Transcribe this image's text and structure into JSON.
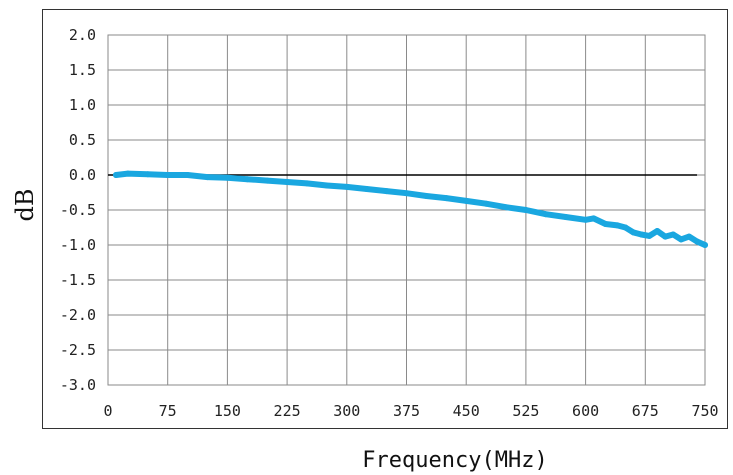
{
  "chart_data": {
    "type": "line",
    "title": "",
    "xlabel": "Frequency(MHz)",
    "ylabel": "dB",
    "xlim": [
      0,
      750
    ],
    "ylim": [
      -3.0,
      2.0
    ],
    "x_ticks": [
      "0",
      "75",
      "150",
      "225",
      "300",
      "375",
      "450",
      "525",
      "600",
      "675",
      "750"
    ],
    "y_ticks": [
      "2.0",
      "1.5",
      "1.0",
      "0.5",
      "0.0",
      "-0.5",
      "-1.0",
      "-1.5",
      "-2.0",
      "-2.5",
      "-3.0"
    ],
    "grid": true,
    "reference_line": {
      "y": 0.0,
      "x_range": [
        0,
        740
      ],
      "color": "#000000"
    },
    "series": [
      {
        "color": "#1aa7e0",
        "x": [
          10,
          25,
          50,
          75,
          100,
          125,
          150,
          175,
          200,
          225,
          250,
          275,
          300,
          325,
          350,
          375,
          400,
          425,
          450,
          475,
          500,
          525,
          550,
          575,
          600,
          610,
          625,
          640,
          650,
          660,
          670,
          680,
          690,
          700,
          710,
          720,
          730,
          740,
          750
        ],
        "y": [
          0.0,
          0.02,
          0.01,
          0.0,
          0.0,
          -0.03,
          -0.04,
          -0.06,
          -0.08,
          -0.1,
          -0.12,
          -0.15,
          -0.17,
          -0.2,
          -0.23,
          -0.26,
          -0.3,
          -0.33,
          -0.37,
          -0.41,
          -0.46,
          -0.5,
          -0.56,
          -0.6,
          -0.64,
          -0.62,
          -0.7,
          -0.72,
          -0.75,
          -0.82,
          -0.85,
          -0.87,
          -0.8,
          -0.88,
          -0.85,
          -0.92,
          -0.88,
          -0.95,
          -1.0
        ]
      }
    ]
  }
}
